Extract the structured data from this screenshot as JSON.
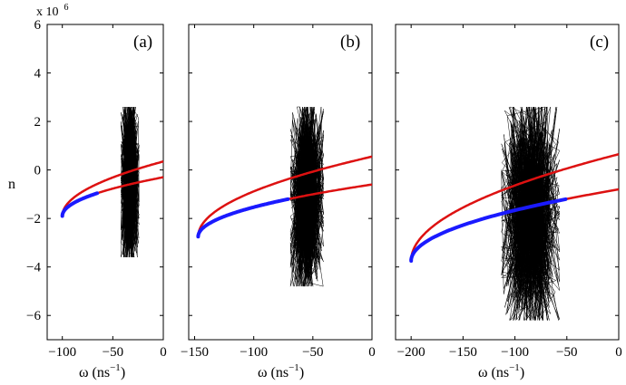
{
  "chart_data": {
    "type": "line",
    "shared_y": {
      "label": "n",
      "exponent_text": "x 10",
      "exponent_power": "6",
      "ylim": [
        -7,
        6
      ],
      "ticks": [
        -6,
        -4,
        -2,
        0,
        2,
        4,
        6
      ],
      "tick_labels": [
        "−6",
        "−4",
        "−2",
        "0",
        "2",
        "4",
        "6"
      ]
    },
    "colors": {
      "noise": "#000000",
      "unstable_branch": "#dd1111",
      "stable_branch": "#1a1aff"
    },
    "panels": [
      {
        "label": "(a)",
        "xlabel": "ω (ns",
        "xlabel_power": "−1",
        "xlabel_close": ")",
        "xlim": [
          -115,
          0
        ],
        "xticks": [
          -100,
          -50,
          0
        ],
        "xtick_labels": [
          "−100",
          "−50",
          "0"
        ],
        "show_y_ticks": true,
        "curve": {
          "tip_omega": -100,
          "tip_n": -1.9,
          "upper_end_n": 0.35,
          "lower_end_n": -0.3,
          "stable_to_omega": -65
        },
        "noise": {
          "omega_center": -33,
          "omega_halfwidth": 9,
          "n_min": -3.6,
          "n_max": 2.6
        }
      },
      {
        "label": "(b)",
        "xlabel": "ω (ns",
        "xlabel_power": "−1",
        "xlabel_close": ")",
        "xlim": [
          -155,
          0
        ],
        "xticks": [
          -150,
          -100,
          -50,
          0
        ],
        "xtick_labels": [
          "−150",
          "−100",
          "−50",
          "0"
        ],
        "show_y_ticks": false,
        "curve": {
          "tip_omega": -147,
          "tip_n": -2.75,
          "upper_end_n": 0.55,
          "lower_end_n": -0.6,
          "stable_to_omega": -70
        },
        "noise": {
          "omega_center": -55,
          "omega_halfwidth": 14,
          "n_min": -4.8,
          "n_max": 2.6
        }
      },
      {
        "label": "(c)",
        "xlabel": "ω (ns",
        "xlabel_power": "−1",
        "xlabel_close": ")",
        "xlim": [
          -215,
          0
        ],
        "xticks": [
          -200,
          -150,
          -100,
          -50,
          0
        ],
        "xtick_labels": [
          "−200",
          "−150",
          "−100",
          "−50",
          "0"
        ],
        "show_y_ticks": false,
        "curve": {
          "tip_omega": -200,
          "tip_n": -3.75,
          "upper_end_n": 0.65,
          "lower_end_n": -0.8,
          "stable_to_omega": -50
        },
        "noise": {
          "omega_center": -85,
          "omega_halfwidth": 28,
          "n_min": -6.2,
          "n_max": 2.6
        }
      }
    ]
  }
}
